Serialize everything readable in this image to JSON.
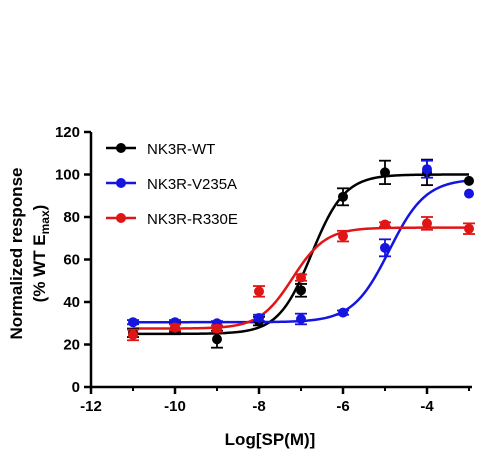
{
  "chart_data": {
    "type": "scatter",
    "xlabel": "Log[SP(M)]",
    "ylabel_line1": "Normalized response",
    "ylabel_line2_prefix": "(% WT E",
    "ylabel_line2_sub": "max",
    "ylabel_line2_suffix": ")",
    "xlim": [
      -12,
      -3
    ],
    "ylim": [
      0,
      120
    ],
    "x_ticks": [
      -12,
      -10,
      -8,
      -6,
      -4
    ],
    "y_ticks": [
      0,
      20,
      40,
      60,
      80,
      100,
      120
    ],
    "legend_position": "top-left",
    "grid": false,
    "series": [
      {
        "name": "NK3R-WT",
        "color": "#000000",
        "x": [
          -11,
          -10,
          -9,
          -8,
          -7,
          -6,
          -5,
          -4,
          -3
        ],
        "y": [
          25.5,
          28,
          22.5,
          31,
          45.5,
          89.5,
          101,
          101,
          97
        ],
        "err": [
          2,
          2,
          4,
          2,
          3,
          4,
          5.5,
          6,
          0
        ],
        "fit": {
          "bottom": 25,
          "top": 100,
          "logEC50": -6.75,
          "hill": 1.1
        }
      },
      {
        "name": "NK3R-V235A",
        "color": "#1515e0",
        "x": [
          -11,
          -10,
          -9,
          -8,
          -7,
          -6,
          -5,
          -4,
          -3
        ],
        "y": [
          30.5,
          30.5,
          30,
          32.5,
          32,
          35,
          65.5,
          102.5,
          91
        ],
        "err": [
          1,
          1,
          1,
          1.5,
          2.5,
          1,
          4,
          4,
          0
        ],
        "fit": {
          "bottom": 30.5,
          "top": 98,
          "logEC50": -4.9,
          "hill": 1.0
        }
      },
      {
        "name": "NK3R-R330E",
        "color": "#e01515",
        "x": [
          -11,
          -10,
          -9,
          -8,
          -7,
          -6,
          -5,
          -4,
          -3
        ],
        "y": [
          24.5,
          28,
          27.5,
          45,
          51.5,
          71,
          76.5,
          77,
          74.5
        ],
        "err": [
          2.5,
          1.5,
          1.5,
          2.5,
          1.5,
          2.5,
          1,
          3,
          2.5
        ],
        "fit": {
          "bottom": 27.5,
          "top": 75,
          "logEC50": -7.2,
          "hill": 1.1
        }
      }
    ]
  }
}
